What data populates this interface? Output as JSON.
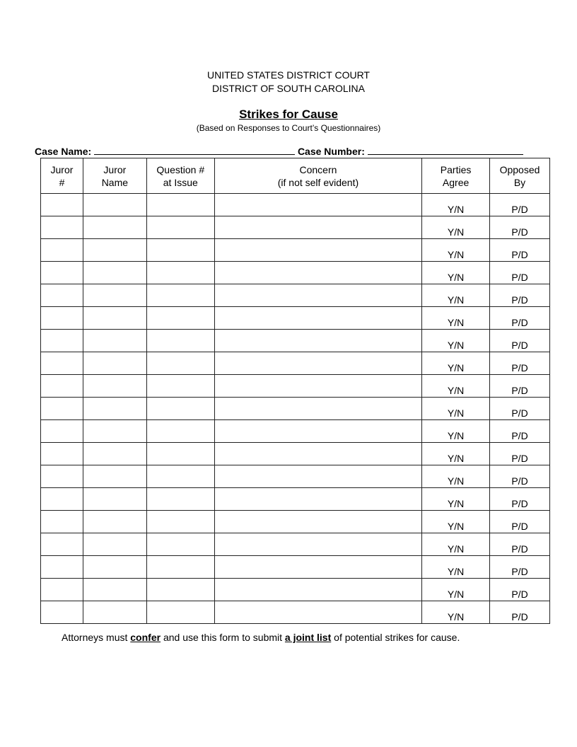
{
  "header": {
    "court": "UNITED STATES DISTRICT COURT",
    "district": "DISTRICT OF SOUTH CAROLINA",
    "title": "Strikes for Cause",
    "subtitle": "(Based on Responses to Court’s Questionnaires)"
  },
  "case": {
    "name_label": "Case Name:",
    "name_value": "",
    "number_label": "Case Number:",
    "number_value": ""
  },
  "table": {
    "columns": [
      {
        "line1": "Juror",
        "line2": "#"
      },
      {
        "line1": "Juror",
        "line2": "Name"
      },
      {
        "line1": "Question #",
        "line2": "at Issue"
      },
      {
        "line1": "Concern",
        "line2": "(if not self evident)"
      },
      {
        "line1": "Parties",
        "line2": "Agree"
      },
      {
        "line1": "Opposed",
        "line2": "By"
      }
    ],
    "rows": [
      {
        "agree": "Y/N",
        "opposed": "P/D"
      },
      {
        "agree": "Y/N",
        "opposed": "P/D"
      },
      {
        "agree": "Y/N",
        "opposed": "P/D"
      },
      {
        "agree": "Y/N",
        "opposed": "P/D"
      },
      {
        "agree": "Y/N",
        "opposed": "P/D"
      },
      {
        "agree": "Y/N",
        "opposed": "P/D"
      },
      {
        "agree": "Y/N",
        "opposed": "P/D"
      },
      {
        "agree": "Y/N",
        "opposed": "P/D"
      },
      {
        "agree": "Y/N",
        "opposed": "P/D"
      },
      {
        "agree": "Y/N",
        "opposed": "P/D"
      },
      {
        "agree": "Y/N",
        "opposed": "P/D"
      },
      {
        "agree": "Y/N",
        "opposed": "P/D"
      },
      {
        "agree": "Y/N",
        "opposed": "P/D"
      },
      {
        "agree": "Y/N",
        "opposed": "P/D"
      },
      {
        "agree": "Y/N",
        "opposed": "P/D"
      },
      {
        "agree": "Y/N",
        "opposed": "P/D"
      },
      {
        "agree": "Y/N",
        "opposed": "P/D"
      },
      {
        "agree": "Y/N",
        "opposed": "P/D"
      },
      {
        "agree": "Y/N",
        "opposed": "P/D"
      }
    ]
  },
  "footer": {
    "part1": "Attorneys must ",
    "confer": "confer",
    "part2": " and use this form to submit ",
    "joint_list": "a joint list",
    "part3": " of potential strikes for cause."
  }
}
